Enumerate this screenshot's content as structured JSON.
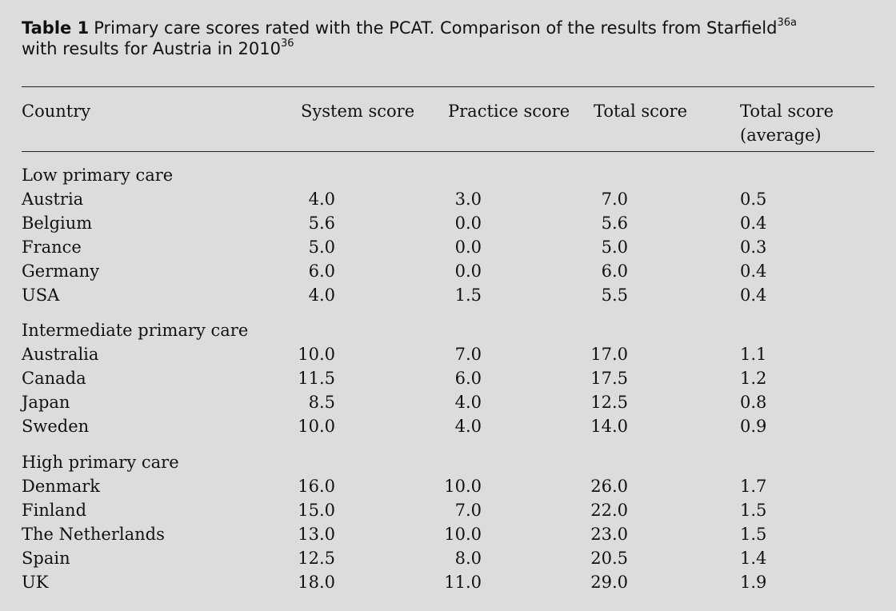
{
  "caption": {
    "label": "Table 1",
    "text_part1": "Primary care scores rated with the PCAT. Comparison of the results from Starfield",
    "sup1": "36a",
    "text_part2": "with results for Austria in 2010",
    "sup2": "36"
  },
  "header": {
    "country": "Country",
    "system": "System score",
    "practice": "Practice score",
    "total": "Total score",
    "average_line1": "Total score",
    "average_line2": "(average)"
  },
  "groups": [
    {
      "title": "Low primary care",
      "rows": [
        {
          "country": "Austria",
          "system": "4.0",
          "practice": "3.0",
          "total": "7.0",
          "average": "0.5"
        },
        {
          "country": "Belgium",
          "system": "5.6",
          "practice": "0.0",
          "total": "5.6",
          "average": "0.4"
        },
        {
          "country": "France",
          "system": "5.0",
          "practice": "0.0",
          "total": "5.0",
          "average": "0.3"
        },
        {
          "country": "Germany",
          "system": "6.0",
          "practice": "0.0",
          "total": "6.0",
          "average": "0.4"
        },
        {
          "country": "USA",
          "system": "4.0",
          "practice": "1.5",
          "total": "5.5",
          "average": "0.4"
        }
      ]
    },
    {
      "title": "Intermediate primary care",
      "rows": [
        {
          "country": "Australia",
          "system": "10.0",
          "practice": "7.0",
          "total": "17.0",
          "average": "1.1"
        },
        {
          "country": "Canada",
          "system": "11.5",
          "practice": "6.0",
          "total": "17.5",
          "average": "1.2"
        },
        {
          "country": "Japan",
          "system": "8.5",
          "practice": "4.0",
          "total": "12.5",
          "average": "0.8"
        },
        {
          "country": "Sweden",
          "system": "10.0",
          "practice": "4.0",
          "total": "14.0",
          "average": "0.9"
        }
      ]
    },
    {
      "title": "High primary care",
      "rows": [
        {
          "country": "Denmark",
          "system": "16.0",
          "practice": "10.0",
          "total": "26.0",
          "average": "1.7"
        },
        {
          "country": "Finland",
          "system": "15.0",
          "practice": "7.0",
          "total": "22.0",
          "average": "1.5"
        },
        {
          "country": "The Netherlands",
          "system": "13.0",
          "practice": "10.0",
          "total": "23.0",
          "average": "1.5"
        },
        {
          "country": "Spain",
          "system": "12.5",
          "practice": "8.0",
          "total": "20.5",
          "average": "1.4"
        },
        {
          "country": "UK",
          "system": "18.0",
          "practice": "11.0",
          "total": "29.0",
          "average": "1.9"
        }
      ]
    }
  ]
}
